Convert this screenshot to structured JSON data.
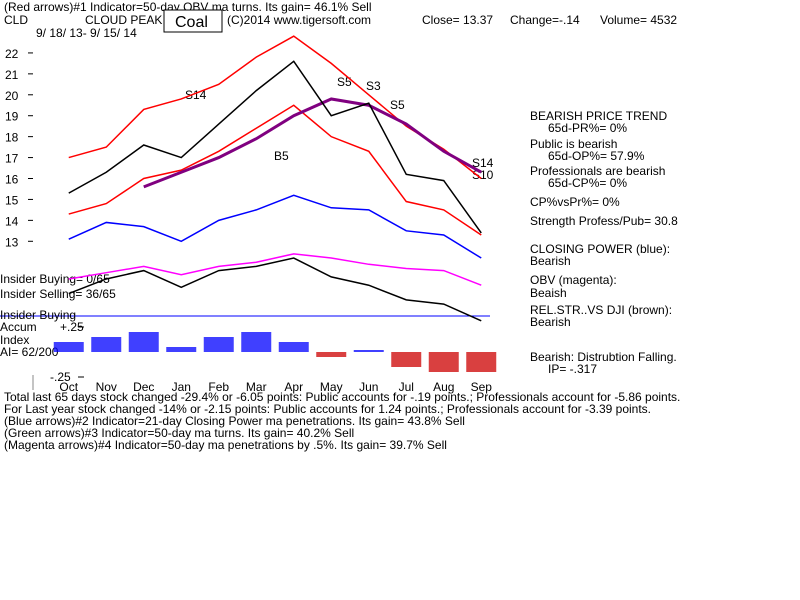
{
  "header": {
    "indicator1": "(Red arrows)#1 Indicator=50-day OBV ma turns. Its gain= 46.1% Sell",
    "symbol": "CLD",
    "name": "CLOUD PEAK",
    "group": "Coal",
    "copyright": "(C)2014 www.tigersoft.com",
    "close": "Close= 13.37",
    "change": "Change=-.14",
    "volume": "Volume= 4532",
    "dates": "9/ 18/ 13- 9/ 15/ 14"
  },
  "side": [
    "BEARISH PRICE TREND",
    "65d-PR%= 0%",
    "Public is bearish",
    "65d-OP%= 57.9%",
    "Professionals are bearish",
    "65d-CP%= 0%",
    "CP%vsPr%=  0%",
    "Strength Profess/Pub= 30.8",
    "CLOSING POWER (blue):",
    "Bearish",
    "OBV (magenta):",
    "Beaish",
    "REL.STR..VS DJI (brown):",
    "Bearish",
    "Bearish: Distrubtion Falling.",
    "IP= -.317"
  ],
  "left": [
    "Insider Buying= 0/65",
    "Insider Selling= 36/65",
    "Insider Buying",
    "Accum",
    "Index",
    "AI= 62/200"
  ],
  "signals": [
    "S14",
    "S5",
    "S3",
    "S5",
    "B5",
    "S14",
    "S10"
  ],
  "footer": [
    "Total last 65 days stock changed -29.4% or -6.05 points:  Public accounts for -.19 points.;  Professionals account for -5.86 points.",
    "For Last year stock changed -14% or -2.15 points:  Public accounts for  1.24 points.;  Professionals account for -3.39 points.",
    "(Blue arrows)#2 Indicator=21-day Closing Power ma penetrations. Its gain= 43.8% Sell",
    "(Green arrows)#3 Indicator=50-day ma turns. Its gain= 40.2% Sell",
    "(Magenta arrows)#4 Indicator=50-day ma penetrations by .5%. Its gain= 39.7% Sell"
  ],
  "chart_data": [
    {
      "type": "line",
      "categories": [
        "Oct",
        "Nov",
        "Dec",
        "Jan",
        "Feb",
        "Mar",
        "Apr",
        "May",
        "Jun",
        "Jul",
        "Aug",
        "Sep"
      ],
      "ylim": [
        9,
        23
      ],
      "yticks": [
        13,
        14,
        15,
        16,
        17,
        18,
        19,
        20,
        21,
        22
      ],
      "series": [
        {
          "color": "#ff0000",
          "values": [
            17.0,
            17.5,
            19.3,
            19.8,
            20.5,
            21.8,
            22.8,
            21.5,
            20.0,
            18.5,
            17.4,
            16.0
          ]
        },
        {
          "color": "#ff0000",
          "values": [
            14.3,
            14.8,
            16.0,
            16.4,
            17.3,
            18.4,
            19.5,
            18.0,
            17.3,
            14.9,
            14.5,
            13.3
          ]
        },
        {
          "color": "#800080",
          "values": [
            null,
            null,
            15.6,
            16.3,
            17.0,
            17.9,
            19.0,
            19.8,
            19.5,
            18.6,
            17.3,
            16.3
          ]
        },
        {
          "color": "#000000",
          "values": [
            15.3,
            16.3,
            17.6,
            17.0,
            18.6,
            20.2,
            21.6,
            19.0,
            19.6,
            16.2,
            15.9,
            13.4
          ]
        },
        {
          "color": "#0000ff",
          "values": [
            13.1,
            13.9,
            13.7,
            13.0,
            14.0,
            14.5,
            15.2,
            14.6,
            14.5,
            13.5,
            13.3,
            12.2
          ]
        },
        {
          "color": "#ff00ff",
          "values": [
            11.2,
            11.5,
            11.8,
            11.4,
            11.8,
            12.0,
            12.4,
            12.2,
            11.9,
            11.7,
            11.6,
            10.9
          ]
        },
        {
          "color": "#000000",
          "values": [
            10.5,
            11.2,
            11.6,
            10.8,
            11.6,
            11.8,
            12.2,
            11.3,
            10.9,
            10.2,
            10.0,
            9.2
          ]
        }
      ]
    },
    {
      "type": "bar",
      "values": [
        0.1,
        0.15,
        0.2,
        0.05,
        0.15,
        0.2,
        0.1,
        -0.05,
        0.02,
        -0.15,
        -0.2,
        -0.2
      ],
      "pos_color": "#0000ff",
      "neg_color": "#cc0000",
      "yticks": [
        {
          "value": 0.25,
          "label": "+.25"
        },
        {
          "value": -0.25,
          "label": "-.25"
        }
      ]
    }
  ]
}
